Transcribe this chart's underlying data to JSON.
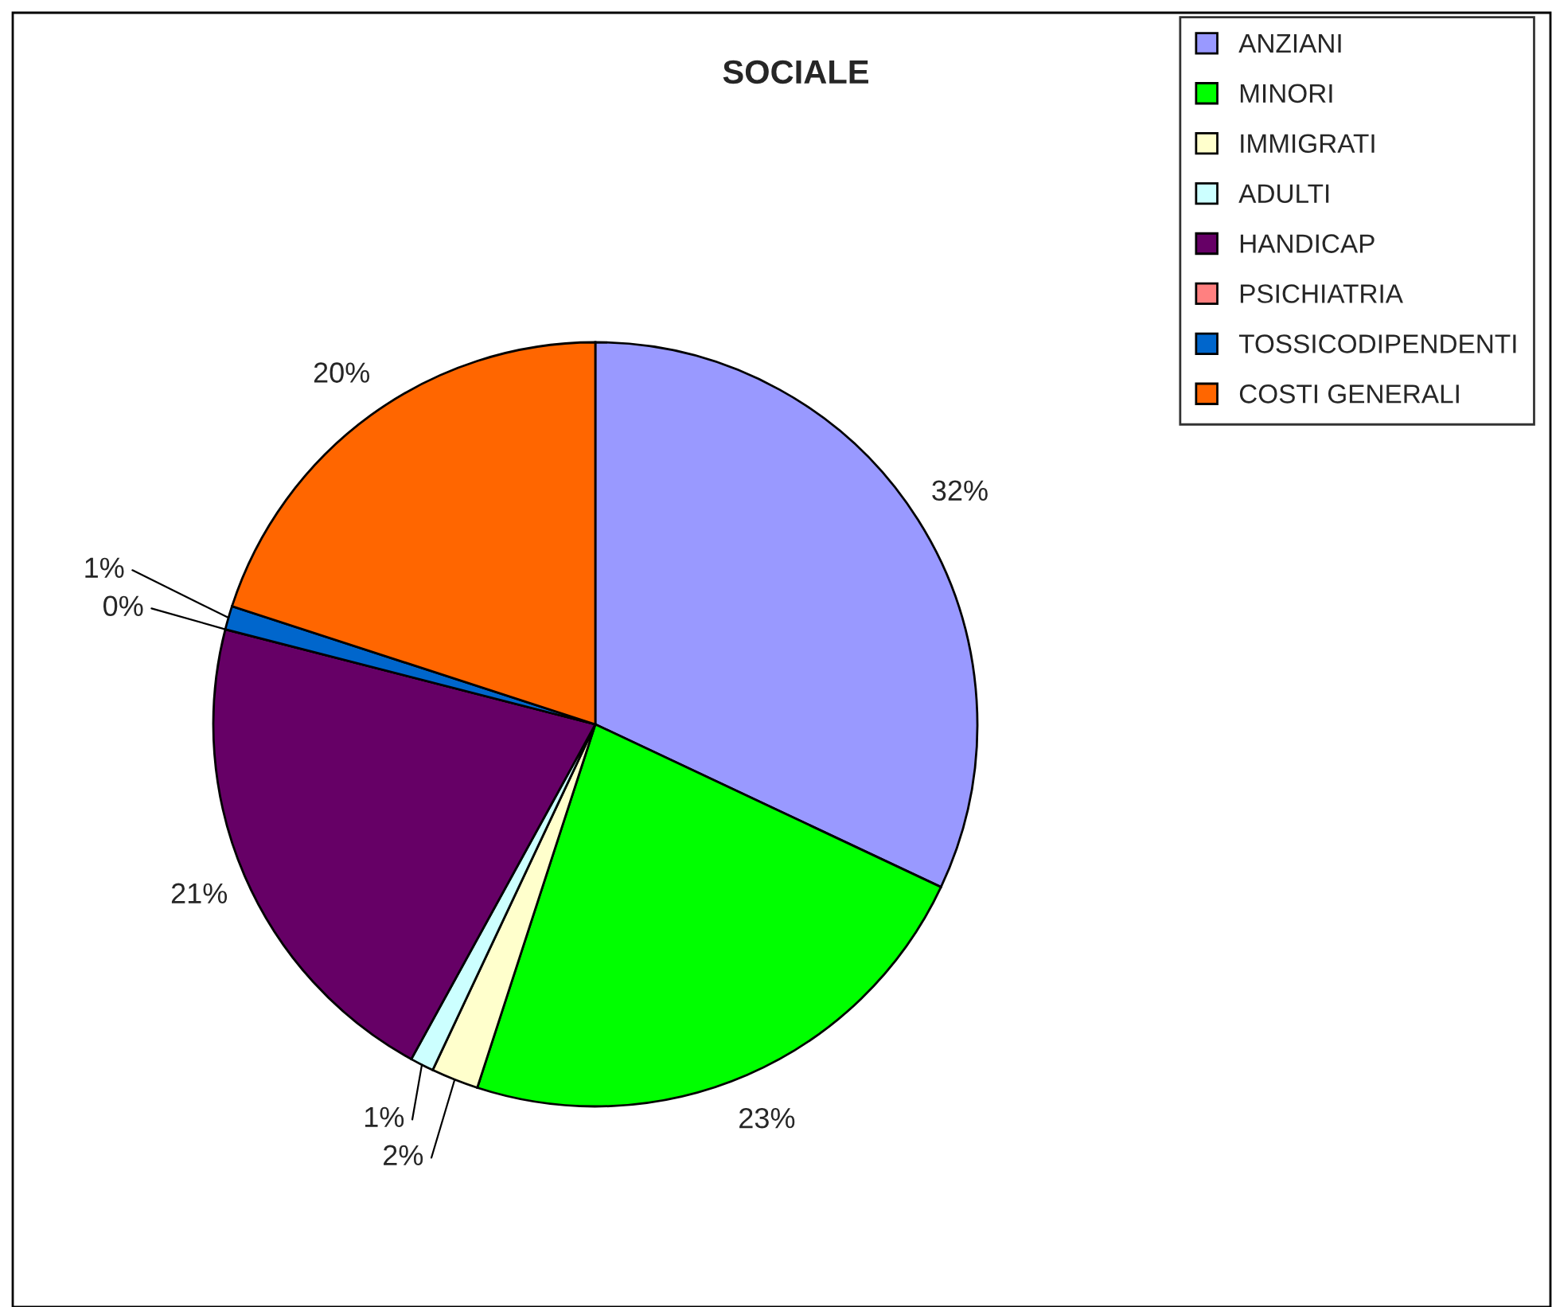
{
  "chart_data": {
    "type": "pie",
    "title": "SOCIALE",
    "categories": [
      "ANZIANI",
      "MINORI",
      "IMMIGRATI",
      "ADULTI",
      "HANDICAP",
      "PSICHIATRIA",
      "TOSSICODIPENDENTI",
      "COSTI GENERALI"
    ],
    "values": [
      32,
      23,
      2,
      1,
      21,
      0,
      1,
      20
    ],
    "colors": [
      "#9999ff",
      "#00ff00",
      "#ffffcc",
      "#ccffff",
      "#660066",
      "#ff8080",
      "#0066cc",
      "#ff6600"
    ],
    "value_labels": [
      "32%",
      "23%",
      "2%",
      "1%",
      "21%",
      "0%",
      "1%",
      "20%"
    ],
    "legend": "top right"
  }
}
